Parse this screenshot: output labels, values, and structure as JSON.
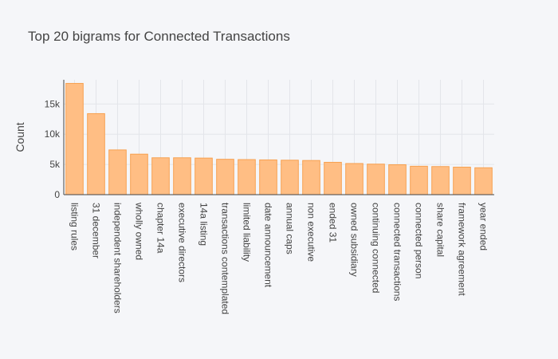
{
  "chart_data": {
    "type": "bar",
    "title": "Top 20 bigrams for Connected Transactions",
    "xlabel": "",
    "ylabel": "Count",
    "ylim": [
      0,
      19000
    ],
    "yticks": [
      0,
      5000,
      10000,
      15000
    ],
    "ytick_labels": [
      "0",
      "5k",
      "10k",
      "15k"
    ],
    "grid": true,
    "bar_color": "#ffbe84",
    "bar_edge_color": "#f7a150",
    "categories": [
      "listing rules",
      "31 december",
      "independent shareholders",
      "wholly owned",
      "chapter 14a",
      "executive directors",
      "14a listing",
      "transactions contemplated",
      "limited liability",
      "date announcement",
      "annual caps",
      "non executive",
      "ended 31",
      "owned subsidiary",
      "continuing connected",
      "connected transactions",
      "connected person",
      "share capital",
      "framework agreement",
      "year ended"
    ],
    "values": [
      18400,
      13400,
      7400,
      6700,
      6100,
      6100,
      6050,
      5850,
      5800,
      5750,
      5700,
      5650,
      5350,
      5150,
      5050,
      4950,
      4700,
      4650,
      4550,
      4450
    ]
  }
}
